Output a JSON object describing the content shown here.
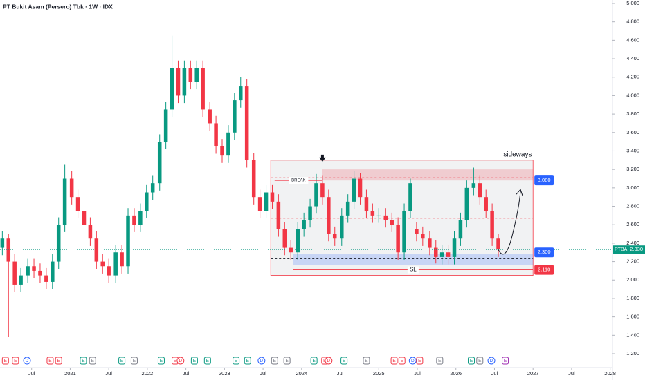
{
  "chart_data": {
    "type": "candlestick",
    "title": "PT Bukit Asam (Persero) Tbk · 1W · IDX",
    "symbol": "PTBA",
    "up_color": "#089981",
    "down_color": "#f23645",
    "xlim": [
      2020.09,
      2028.03
    ],
    "ylim": [
      1.2,
      5.0
    ],
    "xticks": [
      {
        "value": 2020.5,
        "label": "Jul"
      },
      2021,
      {
        "value": 2021.5,
        "label": "Jul"
      },
      2022,
      {
        "value": 2022.5,
        "label": "Jul"
      },
      2023,
      {
        "value": 2023.5,
        "label": "Jul"
      },
      2024,
      {
        "value": 2024.5,
        "label": "Jul"
      },
      2025,
      {
        "value": 2025.5,
        "label": "Jul"
      },
      2026,
      {
        "value": 2026.5,
        "label": "Jul"
      },
      2027,
      {
        "value": 2027.5,
        "label": "Jul"
      },
      2028
    ],
    "yticks": [
      {
        "value": 1.2,
        "label": "1.200"
      },
      {
        "value": 1.4,
        "label": "1.400"
      },
      {
        "value": 1.6,
        "label": "1.600"
      },
      {
        "value": 1.8,
        "label": "1.800"
      },
      {
        "value": 2.0,
        "label": "2.000"
      },
      {
        "value": 2.2,
        "label": "2.200"
      },
      {
        "value": 2.4,
        "label": "2.400"
      },
      {
        "value": 2.6,
        "label": "2.600"
      },
      {
        "value": 2.8,
        "label": "2.800"
      },
      {
        "value": 3.0,
        "label": "3.000"
      },
      {
        "value": 3.2,
        "label": "3.200"
      },
      {
        "value": 3.4,
        "label": "3.400"
      },
      {
        "value": 3.6,
        "label": "3.600"
      },
      {
        "value": 3.8,
        "label": "3.800"
      },
      {
        "value": 4.0,
        "label": "4.000"
      },
      {
        "value": 4.2,
        "label": "4.200"
      },
      {
        "value": 4.4,
        "label": "4.400"
      },
      {
        "value": 4.6,
        "label": "4.600"
      },
      {
        "value": 4.8,
        "label": "4.800"
      },
      {
        "value": 5.0,
        "label": "5.000"
      }
    ],
    "x": [
      2020.12,
      2020.2,
      2020.28,
      2020.36,
      2020.45,
      2020.53,
      2020.61,
      2020.69,
      2020.77,
      2020.85,
      2020.93,
      2021.02,
      2021.1,
      2021.18,
      2021.26,
      2021.34,
      2021.42,
      2021.5,
      2021.59,
      2021.67,
      2021.75,
      2021.83,
      2021.91,
      2021.99,
      2022.07,
      2022.16,
      2022.24,
      2022.32,
      2022.4,
      2022.48,
      2022.56,
      2022.64,
      2022.72,
      2022.81,
      2022.89,
      2022.97,
      2023.05,
      2023.13,
      2023.21,
      2023.29,
      2023.38,
      2023.46,
      2023.54,
      2023.62,
      2023.7,
      2023.78,
      2023.86,
      2023.95,
      2024.03,
      2024.11,
      2024.19,
      2024.27,
      2024.35,
      2024.43,
      2024.52,
      2024.6,
      2024.68,
      2024.76,
      2024.84,
      2024.92,
      2025.0,
      2025.09,
      2025.17,
      2025.25,
      2025.33,
      2025.41,
      2025.49,
      2025.57,
      2025.66,
      2025.74,
      2025.82,
      2025.9,
      2025.98,
      2026.06,
      2026.14,
      2026.23,
      2026.31,
      2026.39,
      2026.47,
      2026.55
    ],
    "open": [
      2.35,
      2.45,
      2.2,
      1.95,
      2.05,
      2.15,
      2.1,
      2.05,
      1.98,
      2.2,
      2.6,
      3.1,
      2.9,
      2.75,
      2.6,
      2.45,
      2.2,
      2.15,
      2.05,
      2.3,
      2.15,
      2.7,
      2.6,
      2.75,
      2.95,
      3.05,
      3.5,
      3.85,
      4.3,
      4.0,
      4.3,
      4.15,
      4.3,
      3.85,
      3.7,
      3.45,
      3.35,
      3.6,
      3.95,
      4.1,
      3.3,
      2.9,
      2.75,
      2.95,
      2.85,
      2.55,
      2.35,
      2.3,
      2.55,
      2.65,
      2.8,
      3.05,
      2.9,
      2.5,
      2.45,
      2.7,
      2.85,
      3.1,
      2.9,
      2.75,
      2.7,
      2.7,
      2.65,
      2.6,
      2.3,
      2.75,
      2.55,
      2.5,
      2.45,
      2.35,
      2.25,
      2.3,
      2.25,
      2.45,
      2.65,
      3.0,
      3.05,
      2.9,
      2.75,
      2.45
    ],
    "high": [
      2.53,
      2.5,
      2.28,
      2.13,
      2.23,
      2.23,
      2.18,
      2.13,
      2.28,
      2.68,
      3.25,
      3.18,
      2.98,
      2.83,
      2.68,
      2.53,
      2.28,
      2.23,
      2.38,
      2.38,
      2.78,
      2.78,
      2.83,
      3.03,
      3.13,
      3.58,
      3.93,
      4.65,
      4.38,
      4.38,
      4.38,
      4.38,
      4.38,
      3.93,
      3.78,
      3.53,
      3.68,
      4.03,
      4.2,
      4.18,
      3.38,
      2.98,
      3.03,
      3.03,
      2.93,
      2.63,
      2.43,
      2.63,
      2.73,
      2.88,
      3.15,
      3.13,
      2.98,
      2.58,
      2.78,
      2.93,
      3.18,
      3.16,
      2.98,
      2.83,
      2.78,
      2.78,
      2.73,
      2.68,
      2.83,
      3.1,
      2.63,
      2.58,
      2.53,
      2.43,
      2.38,
      2.38,
      2.53,
      2.73,
      3.08,
      3.22,
      3.13,
      2.98,
      2.83,
      2.5
    ],
    "low": [
      2.27,
      1.38,
      1.87,
      1.87,
      1.97,
      2.02,
      1.97,
      1.9,
      1.9,
      2.12,
      2.52,
      2.82,
      2.67,
      2.52,
      2.37,
      2.12,
      2.07,
      1.97,
      1.97,
      2.07,
      2.07,
      2.52,
      2.52,
      2.67,
      2.87,
      2.97,
      3.42,
      3.77,
      3.92,
      3.92,
      4.07,
      4.07,
      3.77,
      3.62,
      3.37,
      3.27,
      3.27,
      3.52,
      3.87,
      3.22,
      2.82,
      2.67,
      2.67,
      2.77,
      2.47,
      2.27,
      2.22,
      2.22,
      2.47,
      2.57,
      2.72,
      2.82,
      2.42,
      2.37,
      2.37,
      2.62,
      2.77,
      2.82,
      2.67,
      2.62,
      2.62,
      2.57,
      2.52,
      2.22,
      2.22,
      2.67,
      2.42,
      2.37,
      2.27,
      2.18,
      2.17,
      2.17,
      2.17,
      2.37,
      2.57,
      2.92,
      2.82,
      2.67,
      2.37,
      2.25
    ],
    "close": [
      2.45,
      2.2,
      1.95,
      2.05,
      2.15,
      2.1,
      2.05,
      1.98,
      2.2,
      2.6,
      3.1,
      2.9,
      2.75,
      2.6,
      2.45,
      2.2,
      2.15,
      2.05,
      2.3,
      2.15,
      2.7,
      2.6,
      2.75,
      2.95,
      3.05,
      3.5,
      3.85,
      4.3,
      4.0,
      4.3,
      4.15,
      4.3,
      3.85,
      3.7,
      3.45,
      3.35,
      3.6,
      3.95,
      4.1,
      3.3,
      2.9,
      2.75,
      2.95,
      2.85,
      2.55,
      2.35,
      2.3,
      2.55,
      2.65,
      2.8,
      3.05,
      2.9,
      2.5,
      2.45,
      2.7,
      2.85,
      3.1,
      2.9,
      2.75,
      2.7,
      2.7,
      2.65,
      2.6,
      2.3,
      2.75,
      3.05,
      2.5,
      2.45,
      2.35,
      2.25,
      2.3,
      2.25,
      2.45,
      2.65,
      3.0,
      3.05,
      2.9,
      2.75,
      2.45,
      2.33
    ],
    "last_price": {
      "value": 2.33,
      "label": "2.330",
      "color": "#089981"
    },
    "range_box": {
      "x": [
        2023.6,
        2027.0
      ],
      "y": [
        2.05,
        3.3
      ],
      "color": "#f23645"
    },
    "resistance_zone": {
      "x": [
        2024.27,
        2027.0
      ],
      "y": [
        3.08,
        3.2
      ],
      "color": "#f23645"
    },
    "support_zone": {
      "x": [
        2023.89,
        2027.0
      ],
      "y": [
        2.16,
        2.28
      ],
      "color": "#2962ff"
    },
    "dashed_levels": [
      3.11,
      2.67,
      2.23
    ],
    "break_level": {
      "x": [
        2023.65,
        2024.27
      ],
      "y": 3.08,
      "label": "BREAK"
    },
    "stop_loss": {
      "x": [
        2023.89,
        2027.0
      ],
      "y": 2.11,
      "label": "SL"
    },
    "note": {
      "x": 2026.8,
      "y": 3.36,
      "label": "sideways"
    },
    "price_labels": [
      {
        "value": 3.08,
        "label": "3.080",
        "color": "#2962ff"
      },
      {
        "value": 2.3,
        "label": "2.300",
        "color": "#2962ff"
      },
      {
        "value": 2.11,
        "label": "2.110",
        "color": "#f23645"
      }
    ],
    "events": [
      {
        "x": 2020.16,
        "label": "E",
        "color": "#f23645"
      },
      {
        "x": 2020.29,
        "label": "E",
        "color": "#f23645"
      },
      {
        "x": 2020.44,
        "label": "D",
        "color": "#2962ff"
      },
      {
        "x": 2020.74,
        "label": "E",
        "color": "#f23645"
      },
      {
        "x": 2020.85,
        "label": "E",
        "color": "#f23645"
      },
      {
        "x": 2021.17,
        "label": "E",
        "color": "#089981"
      },
      {
        "x": 2021.29,
        "label": "E",
        "color": "#787b86"
      },
      {
        "x": 2021.67,
        "label": "E",
        "color": "#089981"
      },
      {
        "x": 2021.83,
        "label": "E",
        "color": "#787b86"
      },
      {
        "x": 2022.18,
        "label": "E",
        "color": "#089981"
      },
      {
        "x": 2022.36,
        "label": "E",
        "color": "#f23645"
      },
      {
        "x": 2022.43,
        "label": "D",
        "color": "#f23645"
      },
      {
        "x": 2022.61,
        "label": "E",
        "color": "#089981"
      },
      {
        "x": 2022.78,
        "label": "E",
        "color": "#089981"
      },
      {
        "x": 2023.15,
        "label": "E",
        "color": "#089981"
      },
      {
        "x": 2023.3,
        "label": "E",
        "color": "#089981"
      },
      {
        "x": 2023.48,
        "label": "D",
        "color": "#2962ff"
      },
      {
        "x": 2023.65,
        "label": "E",
        "color": "#787b86"
      },
      {
        "x": 2023.81,
        "label": "E",
        "color": "#787b86"
      },
      {
        "x": 2024.16,
        "label": "E",
        "color": "#089981"
      },
      {
        "x": 2024.3,
        "label": "E",
        "color": "#f23645"
      },
      {
        "x": 2024.35,
        "label": "D",
        "color": "#f23645"
      },
      {
        "x": 2024.55,
        "label": "E",
        "color": "#089981"
      },
      {
        "x": 2024.84,
        "label": "E",
        "color": "#787b86"
      },
      {
        "x": 2025.2,
        "label": "E",
        "color": "#f23645"
      },
      {
        "x": 2025.3,
        "label": "E",
        "color": "#f23645"
      },
      {
        "x": 2025.44,
        "label": "D",
        "color": "#2962ff"
      },
      {
        "x": 2025.53,
        "label": "E",
        "color": "#f23645"
      },
      {
        "x": 2025.79,
        "label": "E",
        "color": "#787b86"
      },
      {
        "x": 2026.2,
        "label": "E",
        "color": "#089981"
      },
      {
        "x": 2026.31,
        "label": "E",
        "color": "#787b86"
      },
      {
        "x": 2026.46,
        "label": "D",
        "color": "#2962ff"
      },
      {
        "x": 2026.64,
        "label": "E",
        "color": "#9c27b0"
      }
    ]
  }
}
